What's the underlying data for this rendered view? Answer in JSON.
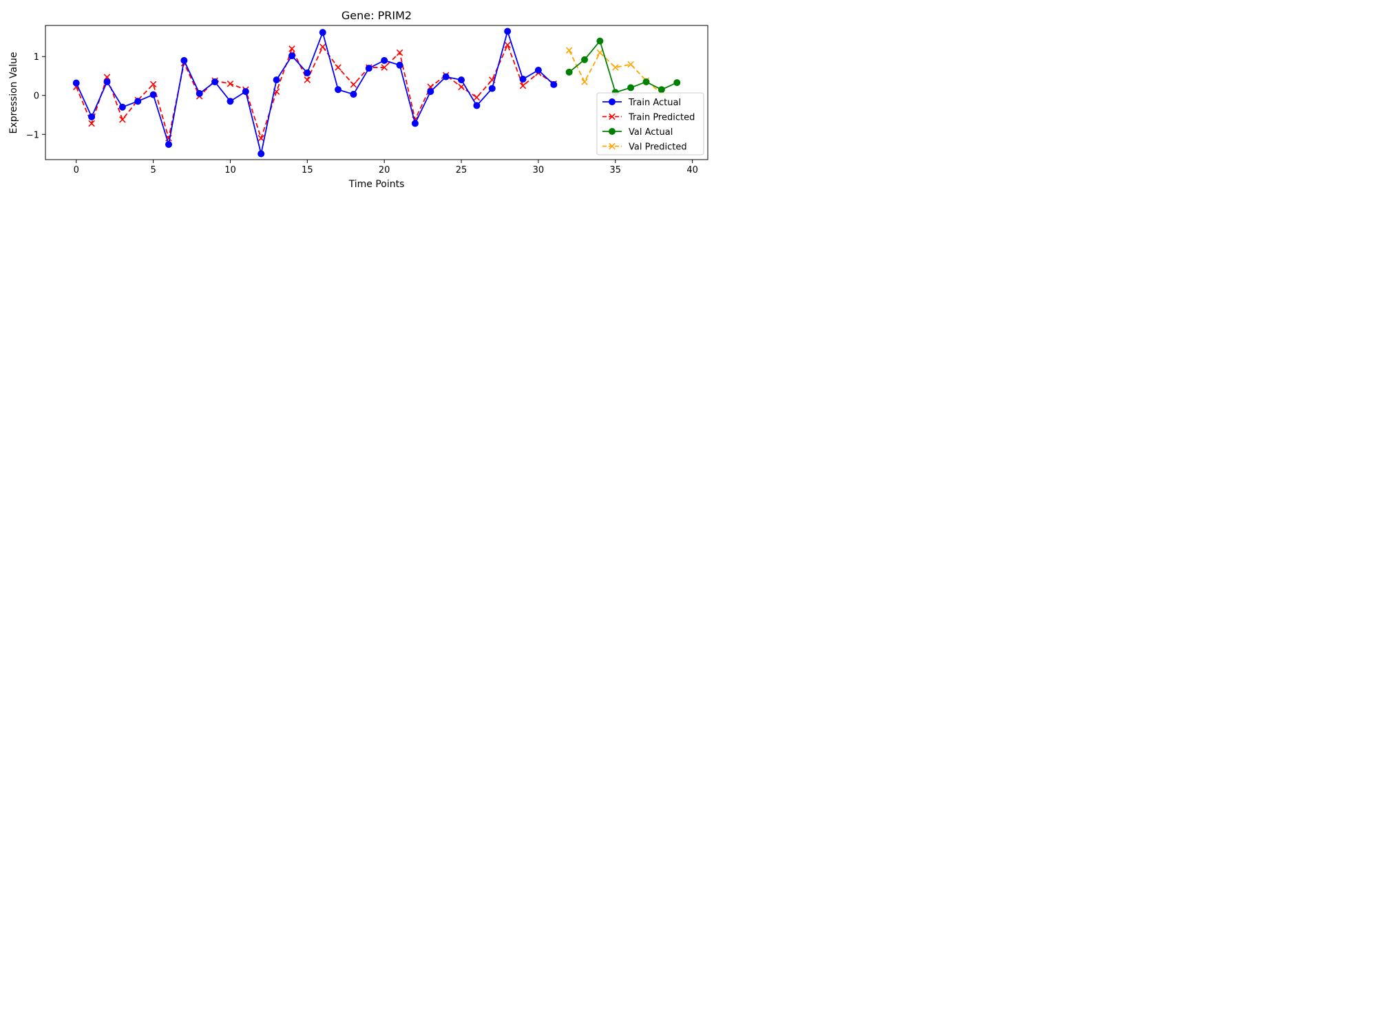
{
  "chart_data": {
    "type": "line",
    "title": "Gene: PRIM2",
    "xlabel": "Time Points",
    "ylabel": "Expression Value",
    "xlim": [
      -2,
      41
    ],
    "ylim": [
      -1.65,
      1.8
    ],
    "xticks": [
      0,
      5,
      10,
      15,
      20,
      25,
      30,
      35,
      40
    ],
    "yticks": [
      -1,
      0,
      1
    ],
    "grid": false,
    "legend_position": "lower-right",
    "series": [
      {
        "name": "Train Actual",
        "color": "#0000ff",
        "linestyle": "solid",
        "marker": "circle",
        "x": [
          0,
          1,
          2,
          3,
          4,
          5,
          6,
          7,
          8,
          9,
          10,
          11,
          12,
          13,
          14,
          15,
          16,
          17,
          18,
          19,
          20,
          21,
          22,
          23,
          24,
          25,
          26,
          27,
          28,
          29,
          30,
          31
        ],
        "y": [
          0.32,
          -0.55,
          0.35,
          -0.3,
          -0.15,
          0.02,
          -1.26,
          0.9,
          0.05,
          0.35,
          -0.15,
          0.1,
          -1.5,
          0.4,
          1.02,
          0.58,
          1.62,
          0.15,
          0.03,
          0.7,
          0.9,
          0.78,
          -0.72,
          0.1,
          0.48,
          0.4,
          -0.26,
          0.18,
          1.65,
          0.42,
          0.65,
          0.28
        ]
      },
      {
        "name": "Train Predicted",
        "color": "#ff0000",
        "linestyle": "dashed",
        "marker": "x",
        "x": [
          0,
          1,
          2,
          3,
          4,
          5,
          6,
          7,
          8,
          9,
          10,
          11,
          12,
          13,
          14,
          15,
          16,
          17,
          18,
          19,
          20,
          21,
          22,
          23,
          24,
          25,
          26,
          27,
          28,
          29,
          30,
          31
        ],
        "y": [
          0.22,
          -0.72,
          0.47,
          -0.62,
          -0.12,
          0.29,
          -1.1,
          0.83,
          -0.02,
          0.38,
          0.3,
          0.15,
          -1.1,
          0.1,
          1.2,
          0.4,
          1.25,
          0.72,
          0.28,
          0.72,
          0.72,
          1.1,
          -0.62,
          0.22,
          0.52,
          0.22,
          -0.05,
          0.4,
          1.3,
          0.25,
          0.58,
          0.3
        ]
      },
      {
        "name": "Val Actual",
        "color": "#008000",
        "linestyle": "solid",
        "marker": "circle",
        "x": [
          32,
          33,
          34,
          35,
          36,
          37,
          38,
          39
        ],
        "y": [
          0.6,
          0.92,
          1.4,
          0.08,
          0.2,
          0.35,
          0.15,
          0.33
        ]
      },
      {
        "name": "Val Predicted",
        "color": "#ffa500",
        "linestyle": "dashed",
        "marker": "x",
        "x": [
          32,
          33,
          34,
          35,
          36,
          37,
          38,
          39
        ],
        "y": [
          1.16,
          0.35,
          1.1,
          0.72,
          0.8,
          0.38,
          0.05,
          null
        ]
      }
    ]
  }
}
